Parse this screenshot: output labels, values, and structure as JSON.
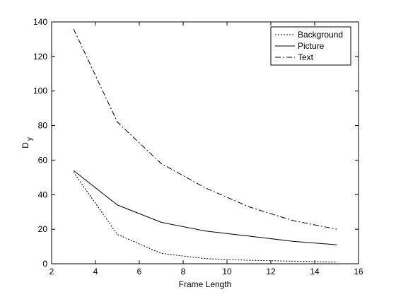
{
  "chart_data": {
    "type": "line",
    "title": "",
    "xlabel": "Frame Length",
    "ylabel": {
      "main": "D",
      "sub": "y"
    },
    "xlim": [
      2,
      16
    ],
    "ylim": [
      0,
      140
    ],
    "xticks": [
      2,
      4,
      6,
      8,
      10,
      12,
      14,
      16
    ],
    "yticks": [
      0,
      20,
      40,
      60,
      80,
      100,
      120,
      140
    ],
    "grid": false,
    "legend_position": "top-right",
    "x": [
      3,
      5,
      7,
      9,
      11,
      13,
      15
    ],
    "series": [
      {
        "name": "Background",
        "style": "dotted",
        "color": "#000000",
        "values": [
          53,
          17,
          6,
          3,
          2,
          1.5,
          1
        ]
      },
      {
        "name": "Picture",
        "style": "solid",
        "color": "#000000",
        "values": [
          54,
          34,
          24,
          19,
          16,
          13,
          11
        ]
      },
      {
        "name": "Text",
        "style": "dashdot",
        "color": "#000000",
        "values": [
          136,
          82,
          58,
          44,
          33,
          25,
          20
        ]
      }
    ]
  }
}
